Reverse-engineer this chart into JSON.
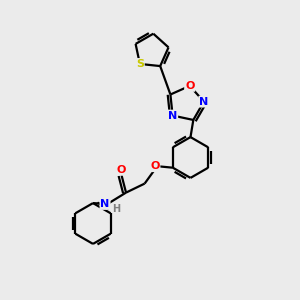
{
  "background_color": "#ebebeb",
  "bond_color": "black",
  "bond_width": 1.6,
  "atom_colors": {
    "S": "#c8c800",
    "O": "#ff0000",
    "N": "#0000ff",
    "H": "#808080",
    "C": "black"
  },
  "font_size_atom": 8,
  "font_size_h": 7
}
